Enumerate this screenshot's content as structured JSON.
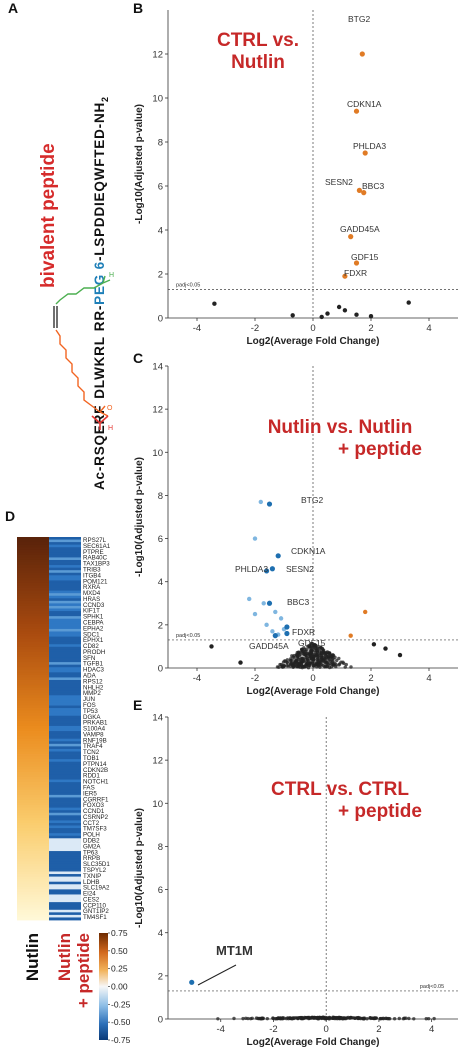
{
  "panels": {
    "A": {
      "letter": "A",
      "title": "bivalent peptide",
      "seq_start": "Ac-RSQERF",
      "seq_mid": "DLWKRL",
      "seq_rr": "RR-",
      "seq_peg": "PEG 6",
      "seq_end": "-LSPDDIEQWFTED-NH",
      "seq_sub": "2",
      "colors": {
        "title": "#d62b2b",
        "peg": "#1e7fb8",
        "linker_top": "#4caf50",
        "linker_bottom": "#f26522",
        "text": "#111111"
      }
    },
    "D": {
      "letter": "D",
      "genes": [
        "RPS27L",
        "SEC61A1",
        "PTPRE",
        "RAB40C",
        "TAX1BP3",
        "TRIB3",
        "ITGB4",
        "POM121",
        "RXRA",
        "MXD4",
        "HRAS",
        "CCND3",
        "KIF1T",
        "SPHK1",
        "CEBPA",
        "EPHA2",
        "SDC1",
        "EPHX1",
        "CD82",
        "PRODH",
        "SFN",
        "TGFB1",
        "HDAC3",
        "ADA",
        "RPS12",
        "NHLH2",
        "MMP2",
        "JUN",
        "FOS",
        "TP53",
        "DGKA",
        "PRKAB1",
        "S100A4",
        "VAMP8",
        "RNF19B",
        "TRAF4",
        "TCN2",
        "TOB1",
        "PTPN14",
        "CDKN2B",
        "RDD1",
        "NOTCH1",
        "FAS",
        "IER5",
        "CGRRF1",
        "FOXO3",
        "CCND1",
        "CSRNP2",
        "CCT2",
        "TM7SF3",
        "POLH",
        "DDB2",
        "GM2A",
        "TP63",
        "RRPB",
        "SLC35D1",
        "TSPYL2",
        "TXNIP",
        "LDHB",
        "SLC19A2",
        "EI24",
        "CES2",
        "CCP110",
        "GNT1IP2",
        "TM4SF1"
      ],
      "col_labels": [
        "Nutlin",
        "Nutlin",
        "+ peptide"
      ],
      "colorbar_ticks": [
        "0.75",
        "0.50",
        "0.25",
        "0.00",
        "-0.25",
        "-0.50",
        "-0.75"
      ],
      "colors": {
        "label_black": "#111111",
        "label_red": "#c62828"
      }
    }
  },
  "chart_data": [
    {
      "id": "B",
      "letter": "B",
      "type": "scatter",
      "title_lines": [
        "CTRL vs.",
        "Nutlin"
      ],
      "xlabel": "Log2(Average Fold Change)",
      "ylabel": "-Log10(Adjusted p-value)",
      "xlim": [
        -5,
        5
      ],
      "ylim": [
        0,
        14
      ],
      "xticks": [
        -4,
        -2,
        0,
        2,
        4
      ],
      "yticks": [
        0,
        2,
        4,
        6,
        8,
        10,
        12
      ],
      "threshold_label": "padj<0.05",
      "threshold_y": 1.3,
      "colors": {
        "up": "#e07b25",
        "down": "#1e6fb0",
        "down_light": "#7fb6e0",
        "ns": "#222222",
        "title": "#c62828"
      },
      "labeled_points": [
        {
          "label": "BTG2",
          "x": 1.7,
          "y": 12.0,
          "group": "up"
        },
        {
          "label": "CDKN1A",
          "x": 1.5,
          "y": 9.4,
          "group": "up"
        },
        {
          "label": "PHLDA3",
          "x": 1.8,
          "y": 7.5,
          "group": "up"
        },
        {
          "label": "SESN2",
          "x": 1.6,
          "y": 5.8,
          "group": "up"
        },
        {
          "label": "BBC3",
          "x": 1.75,
          "y": 5.7,
          "group": "up"
        },
        {
          "label": "GADD45A",
          "x": 1.3,
          "y": 3.7,
          "group": "up"
        },
        {
          "label": "GDF15",
          "x": 1.5,
          "y": 2.5,
          "group": "up"
        },
        {
          "label": "FDXR",
          "x": 1.1,
          "y": 1.9,
          "group": "up"
        }
      ],
      "other_points": [
        {
          "x": -3.4,
          "y": 0.65,
          "group": "ns"
        },
        {
          "x": 3.3,
          "y": 0.7,
          "group": "ns"
        },
        {
          "x": 0.9,
          "y": 0.5,
          "group": "ns"
        },
        {
          "x": 1.1,
          "y": 0.35,
          "group": "ns"
        },
        {
          "x": 0.5,
          "y": 0.2,
          "group": "ns"
        },
        {
          "x": 1.5,
          "y": 0.15,
          "group": "ns"
        },
        {
          "x": -0.7,
          "y": 0.12,
          "group": "ns"
        },
        {
          "x": 2.0,
          "y": 0.08,
          "group": "ns"
        },
        {
          "x": 0.3,
          "y": 0.05,
          "group": "ns"
        }
      ]
    },
    {
      "id": "C",
      "letter": "C",
      "type": "scatter",
      "title_lines": [
        "Nutlin vs. Nutlin",
        "+ peptide"
      ],
      "xlabel": "Log2(Average Fold Change)",
      "ylabel": "-Log10(Adjusted p-value)",
      "xlim": [
        -5,
        5
      ],
      "ylim": [
        0,
        14
      ],
      "xticks": [
        -4,
        -2,
        0,
        2,
        4
      ],
      "yticks": [
        0,
        2,
        4,
        6,
        8,
        10,
        12,
        14
      ],
      "threshold_label": "padj<0.05",
      "threshold_y": 1.3,
      "colors": {
        "up": "#e07b25",
        "down": "#1e6fb0",
        "down_light": "#7fb6e0",
        "ns": "#222222",
        "title": "#c62828"
      },
      "labeled_points": [
        {
          "label": "BTG2",
          "x": -1.5,
          "y": 7.6,
          "group": "down"
        },
        {
          "label": "CDKN1A",
          "x": -1.2,
          "y": 5.2,
          "group": "down"
        },
        {
          "label": "PHLDA3",
          "x": -1.6,
          "y": 4.5,
          "group": "down"
        },
        {
          "label": "SESN2",
          "x": -1.4,
          "y": 4.6,
          "group": "down"
        },
        {
          "label": "BBC3",
          "x": -1.5,
          "y": 3.0,
          "group": "down"
        },
        {
          "label": "FDXR",
          "x": -0.9,
          "y": 1.9,
          "group": "down"
        },
        {
          "label": "GADD45A",
          "x": -0.9,
          "y": 1.6,
          "group": "down"
        },
        {
          "label": "GDF15",
          "x": -1.3,
          "y": 1.5,
          "group": "down"
        }
      ],
      "other_points": [
        {
          "x": -1.8,
          "y": 7.7,
          "group": "down_light"
        },
        {
          "x": -2.0,
          "y": 6.0,
          "group": "down_light"
        },
        {
          "x": -2.2,
          "y": 3.2,
          "group": "down_light"
        },
        {
          "x": -1.7,
          "y": 3.0,
          "group": "down_light"
        },
        {
          "x": -2.0,
          "y": 2.5,
          "group": "down_light"
        },
        {
          "x": -1.3,
          "y": 2.6,
          "group": "down_light"
        },
        {
          "x": -1.6,
          "y": 2.0,
          "group": "down_light"
        },
        {
          "x": -1.1,
          "y": 2.3,
          "group": "down_light"
        },
        {
          "x": -1.0,
          "y": 1.8,
          "group": "down_light"
        },
        {
          "x": -1.4,
          "y": 1.7,
          "group": "down_light"
        },
        {
          "x": -1.2,
          "y": 1.55,
          "group": "down_light"
        },
        {
          "x": 1.8,
          "y": 2.6,
          "group": "up"
        },
        {
          "x": 1.3,
          "y": 1.5,
          "group": "up"
        },
        {
          "x": -3.5,
          "y": 1.0,
          "group": "ns"
        },
        {
          "x": -2.5,
          "y": 0.25,
          "group": "ns"
        },
        {
          "x": 2.5,
          "y": 0.9,
          "group": "ns"
        },
        {
          "x": 2.1,
          "y": 1.1,
          "group": "ns"
        },
        {
          "x": 3.0,
          "y": 0.6,
          "group": "ns"
        }
      ],
      "ns_cloud": {
        "x_spread": 1.4,
        "y_max": 1.2,
        "count": 320
      }
    },
    {
      "id": "E",
      "letter": "E",
      "type": "scatter",
      "title_lines": [
        "CTRL vs. CTRL",
        "+ peptide"
      ],
      "xlabel": "Log2(Average Fold Change)",
      "ylabel": "-Log10(Adjusted p-value)",
      "xlim": [
        -6,
        5
      ],
      "ylim": [
        0,
        14
      ],
      "xticks": [
        -4,
        -2,
        0,
        2,
        4
      ],
      "yticks": [
        0,
        2,
        4,
        6,
        8,
        10,
        12,
        14
      ],
      "threshold_label": "padj<0.05",
      "threshold_y": 1.3,
      "colors": {
        "up": "#e07b25",
        "down": "#1e6fb0",
        "down_light": "#7fb6e0",
        "ns": "#222222",
        "title": "#c62828"
      },
      "labeled_points": [
        {
          "label": "MT1M",
          "x": -5.1,
          "y": 1.7,
          "group": "down"
        }
      ],
      "other_points": [],
      "ns_cloud": {
        "x_spread": 4.5,
        "y_max": 0.08,
        "count": 220
      }
    }
  ]
}
